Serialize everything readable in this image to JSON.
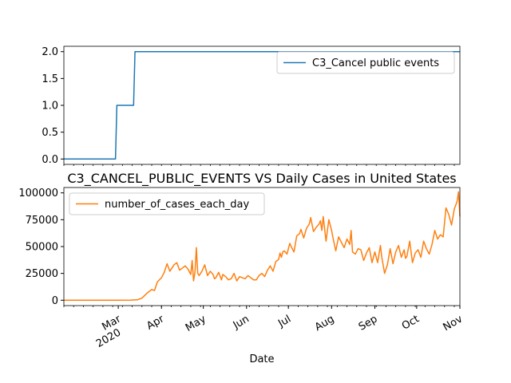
{
  "colors": {
    "series_top": "#1f77b4",
    "series_bottom": "#ff7f0e",
    "axes": "#000000",
    "legend_border": "#cccccc",
    "background": "#ffffff"
  },
  "chart_data": [
    {
      "type": "line",
      "title": "",
      "xlabel": "",
      "ylabel": "",
      "grid": false,
      "legend": "top-right",
      "xlim": [
        "2020-01-22",
        "2020-11-01"
      ],
      "ylim": [
        -0.1,
        2.1
      ],
      "yticks": [
        "0.0",
        "0.5",
        "1.0",
        "1.5",
        "2.0"
      ],
      "series": [
        {
          "name": "C3_Cancel public events",
          "x": [
            "2020-01-22",
            "2020-02-28",
            "2020-02-29",
            "2020-03-12",
            "2020-03-13",
            "2020-11-01"
          ],
          "y": [
            0,
            0,
            1,
            1,
            2,
            2
          ]
        }
      ]
    },
    {
      "type": "line",
      "title": "C3_CANCEL_PUBLIC_EVENTS VS Daily Cases in United States",
      "xlabel": "Date",
      "ylabel": "",
      "grid": false,
      "legend": "top-left",
      "xlim": [
        "2020-01-22",
        "2020-11-01"
      ],
      "ylim": [
        -5000,
        105000
      ],
      "yticks": [
        "0",
        "25000",
        "50000",
        "75000",
        "100000"
      ],
      "xticks": [
        {
          "date": "2020-03-01",
          "label": "Mar",
          "sublabel": "2020"
        },
        {
          "date": "2020-04-01",
          "label": "Apr",
          "sublabel": ""
        },
        {
          "date": "2020-05-01",
          "label": "May",
          "sublabel": ""
        },
        {
          "date": "2020-06-01",
          "label": "Jun",
          "sublabel": ""
        },
        {
          "date": "2020-07-01",
          "label": "Jul",
          "sublabel": ""
        },
        {
          "date": "2020-08-01",
          "label": "Aug",
          "sublabel": ""
        },
        {
          "date": "2020-09-01",
          "label": "Sep",
          "sublabel": ""
        },
        {
          "date": "2020-10-01",
          "label": "Oct",
          "sublabel": ""
        },
        {
          "date": "2020-11-01",
          "label": "Nov",
          "sublabel": ""
        }
      ],
      "series": [
        {
          "name": "number_of_cases_each_day",
          "x": [
            "2020-01-22",
            "2020-03-01",
            "2020-03-10",
            "2020-03-15",
            "2020-03-18",
            "2020-03-22",
            "2020-03-25",
            "2020-03-27",
            "2020-03-29",
            "2020-04-01",
            "2020-04-03",
            "2020-04-04",
            "2020-04-05",
            "2020-04-07",
            "2020-04-09",
            "2020-04-10",
            "2020-04-12",
            "2020-04-14",
            "2020-04-16",
            "2020-04-18",
            "2020-04-20",
            "2020-04-22",
            "2020-04-23",
            "2020-04-24",
            "2020-04-25",
            "2020-04-26",
            "2020-04-27",
            "2020-04-28",
            "2020-04-30",
            "2020-05-02",
            "2020-05-04",
            "2020-05-06",
            "2020-05-08",
            "2020-05-09",
            "2020-05-10",
            "2020-05-12",
            "2020-05-14",
            "2020-05-15",
            "2020-05-17",
            "2020-05-19",
            "2020-05-21",
            "2020-05-23",
            "2020-05-25",
            "2020-05-27",
            "2020-05-29",
            "2020-05-31",
            "2020-06-02",
            "2020-06-04",
            "2020-06-06",
            "2020-06-08",
            "2020-06-10",
            "2020-06-12",
            "2020-06-14",
            "2020-06-16",
            "2020-06-18",
            "2020-06-20",
            "2020-06-22",
            "2020-06-24",
            "2020-06-25",
            "2020-06-26",
            "2020-06-27",
            "2020-06-28",
            "2020-06-30",
            "2020-07-02",
            "2020-07-03",
            "2020-07-05",
            "2020-07-07",
            "2020-07-09",
            "2020-07-10",
            "2020-07-12",
            "2020-07-14",
            "2020-07-16",
            "2020-07-17",
            "2020-07-19",
            "2020-07-21",
            "2020-07-23",
            "2020-07-24",
            "2020-07-25",
            "2020-07-26",
            "2020-07-28",
            "2020-07-30",
            "2020-08-01",
            "2020-08-02",
            "2020-08-04",
            "2020-08-06",
            "2020-08-08",
            "2020-08-10",
            "2020-08-12",
            "2020-08-14",
            "2020-08-15",
            "2020-08-16",
            "2020-08-18",
            "2020-08-20",
            "2020-08-22",
            "2020-08-24",
            "2020-08-26",
            "2020-08-28",
            "2020-08-30",
            "2020-09-01",
            "2020-09-03",
            "2020-09-05",
            "2020-09-06",
            "2020-09-08",
            "2020-09-10",
            "2020-09-12",
            "2020-09-14",
            "2020-09-16",
            "2020-09-18",
            "2020-09-20",
            "2020-09-22",
            "2020-09-23",
            "2020-09-24",
            "2020-09-26",
            "2020-09-28",
            "2020-09-30",
            "2020-10-02",
            "2020-10-04",
            "2020-10-06",
            "2020-10-08",
            "2020-10-10",
            "2020-10-12",
            "2020-10-14",
            "2020-10-16",
            "2020-10-18",
            "2020-10-20",
            "2020-10-22",
            "2020-10-24",
            "2020-10-26",
            "2020-10-28",
            "2020-10-30",
            "2020-10-31",
            "2020-11-01"
          ],
          "y": [
            0,
            50,
            150,
            500,
            2000,
            7000,
            10000,
            9000,
            17000,
            21000,
            26000,
            30000,
            34000,
            27000,
            31000,
            33000,
            35000,
            28000,
            30000,
            32000,
            29000,
            24000,
            37000,
            18000,
            26000,
            49000,
            25000,
            23000,
            27000,
            33000,
            23000,
            27000,
            24000,
            20000,
            21000,
            26000,
            19000,
            24000,
            22000,
            19000,
            20000,
            25000,
            18000,
            22000,
            21000,
            20000,
            23000,
            21000,
            19000,
            19000,
            23000,
            25000,
            22000,
            28000,
            32000,
            27000,
            36000,
            38000,
            44000,
            40000,
            45000,
            46000,
            43000,
            53000,
            50000,
            45000,
            60000,
            62000,
            66000,
            58000,
            67000,
            71000,
            77000,
            64000,
            68000,
            71000,
            74000,
            65000,
            78000,
            55000,
            75000,
            65000,
            58000,
            46000,
            59000,
            54000,
            49000,
            57000,
            52000,
            65000,
            45000,
            43000,
            48000,
            47000,
            37000,
            44000,
            49000,
            35000,
            45000,
            35000,
            51000,
            40000,
            25000,
            33000,
            48000,
            34000,
            45000,
            51000,
            40000,
            47000,
            39000,
            41000,
            55000,
            35000,
            44000,
            47000,
            40000,
            55000,
            48000,
            43000,
            52000,
            65000,
            57000,
            61000,
            59000,
            86000,
            80000,
            70000,
            85000,
            92000,
            101000,
            78000
          ]
        }
      ]
    }
  ]
}
